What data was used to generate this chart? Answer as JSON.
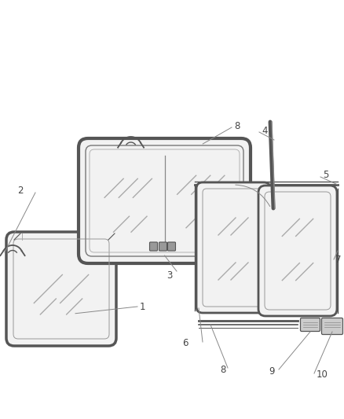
{
  "background_color": "#ffffff",
  "line_color": "#555555",
  "label_color": "#444444",
  "fig_width": 4.38,
  "fig_height": 5.33,
  "dpi": 100
}
